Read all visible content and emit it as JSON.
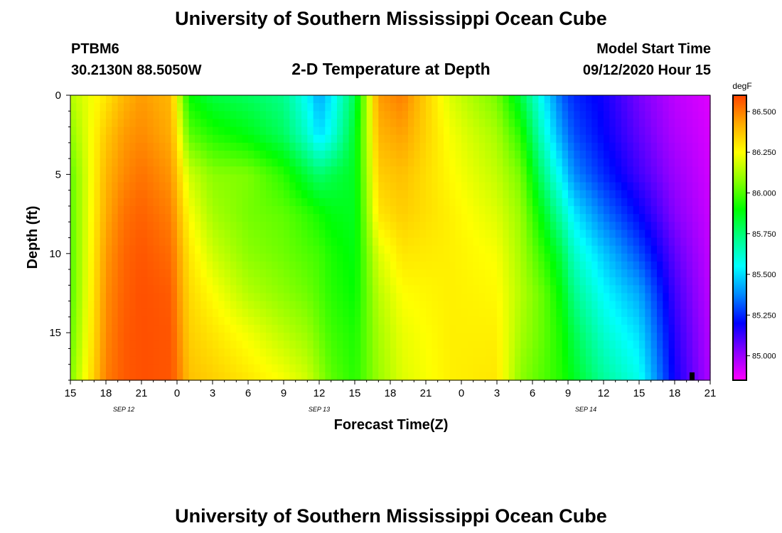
{
  "header": {
    "title": "University of Southern Mississippi Ocean Cube",
    "station_id": "PTBM6",
    "station_coords": "30.2130N 88.5050W",
    "subtitle": "2-D Temperature at Depth",
    "model_start_label": "Model Start Time",
    "model_start_value": "09/12/2020 Hour 15"
  },
  "footer": {
    "title": "University of Southern Mississippi Ocean Cube"
  },
  "chart_data": {
    "type": "heatmap",
    "title": "2-D Temperature at Depth",
    "xlabel": "Forecast Time(Z)",
    "ylabel": "Depth (ft)",
    "colorbar_unit": "degF",
    "colorbar_ticks": [
      "86.500",
      "86.250",
      "86.000",
      "85.750",
      "85.500",
      "85.250",
      "85.000"
    ],
    "colorbar_range": [
      84.85,
      86.6
    ],
    "colorbar_colors": [
      "#ff00ff",
      "#8a00ff",
      "#0000ff",
      "#0088ff",
      "#00ffff",
      "#00ff88",
      "#00ff00",
      "#88ff00",
      "#ffff00",
      "#ffaa00",
      "#ff4400"
    ],
    "x_tick_labels": [
      "15",
      "18",
      "21",
      "0",
      "3",
      "6",
      "9",
      "12",
      "15",
      "18",
      "21",
      "0",
      "3",
      "6",
      "9",
      "12",
      "15",
      "18",
      "21"
    ],
    "x_hours": [
      0,
      3,
      6,
      9,
      12,
      15,
      18,
      21,
      24,
      27,
      30,
      33,
      36,
      39,
      42,
      45,
      48,
      51,
      54
    ],
    "date_labels": [
      {
        "hour": 4.5,
        "text": "SEP 12"
      },
      {
        "hour": 21,
        "text": "SEP 13"
      },
      {
        "hour": 43.5,
        "text": "SEP 14"
      }
    ],
    "y_tick_labels": [
      "0",
      "5",
      "10",
      "15"
    ],
    "y_ticks": [
      0,
      5,
      10,
      15
    ],
    "xlim_hours": [
      0,
      54
    ],
    "ylim_ft": [
      0,
      18
    ],
    "x_hours_series": [
      0,
      3,
      4.5,
      6,
      8.5,
      9,
      10,
      12,
      15,
      18,
      20,
      21,
      22,
      24,
      26,
      28,
      32,
      36,
      38,
      40,
      41.5,
      42.5,
      45,
      48,
      51,
      54
    ],
    "depth_ft_series": [
      0,
      2.5,
      5,
      7.5,
      10,
      12.5,
      15,
      18
    ],
    "temperature_degF": [
      [
        86.14,
        86.08,
        86.02,
        86.01,
        86.0,
        86.0,
        86.02,
        86.06
      ],
      [
        86.3,
        86.36,
        86.4,
        86.42,
        86.45,
        86.47,
        86.48,
        86.5
      ],
      [
        86.4,
        86.45,
        86.48,
        86.52,
        86.54,
        86.55,
        86.56,
        86.56
      ],
      [
        86.45,
        86.48,
        86.52,
        86.55,
        86.57,
        86.58,
        86.58,
        86.58
      ],
      [
        86.4,
        86.42,
        86.46,
        86.5,
        86.53,
        86.56,
        86.57,
        86.57
      ],
      [
        86.22,
        86.3,
        86.37,
        86.42,
        86.46,
        86.48,
        86.5,
        86.52
      ],
      [
        85.9,
        86.02,
        86.18,
        86.25,
        86.3,
        86.33,
        86.35,
        86.38
      ],
      [
        85.82,
        85.94,
        86.08,
        86.12,
        86.18,
        86.25,
        86.3,
        86.35
      ],
      [
        85.78,
        85.88,
        86.06,
        86.05,
        86.08,
        86.14,
        86.23,
        86.3
      ],
      [
        85.72,
        85.78,
        85.95,
        86.02,
        86.04,
        86.08,
        86.15,
        86.24
      ],
      [
        85.55,
        85.62,
        85.82,
        85.96,
        86.0,
        86.04,
        86.1,
        86.18
      ],
      [
        85.42,
        85.5,
        85.76,
        85.92,
        85.98,
        86.0,
        86.04,
        86.1
      ],
      [
        85.52,
        85.58,
        85.8,
        85.88,
        85.93,
        85.95,
        85.98,
        86.02
      ],
      [
        85.8,
        85.85,
        85.86,
        85.86,
        85.88,
        85.9,
        85.93,
        85.95
      ],
      [
        86.45,
        86.4,
        86.35,
        86.3,
        86.2,
        86.15,
        86.12,
        86.1
      ],
      [
        86.5,
        86.44,
        86.38,
        86.35,
        86.3,
        86.25,
        86.22,
        86.2
      ],
      [
        86.2,
        86.24,
        86.26,
        86.28,
        86.28,
        86.28,
        86.28,
        86.28
      ],
      [
        86.05,
        86.12,
        86.16,
        86.2,
        86.24,
        86.26,
        86.28,
        86.3
      ],
      [
        85.82,
        85.95,
        86.05,
        86.1,
        86.12,
        86.14,
        86.12,
        86.08
      ],
      [
        85.52,
        85.6,
        85.72,
        85.85,
        85.95,
        86.02,
        86.02,
        86.0
      ],
      [
        85.32,
        85.4,
        85.52,
        85.66,
        85.8,
        85.88,
        85.92,
        85.94
      ],
      [
        85.25,
        85.3,
        85.38,
        85.52,
        85.63,
        85.72,
        85.8,
        85.86
      ],
      [
        85.18,
        85.2,
        85.25,
        85.35,
        85.47,
        85.55,
        85.62,
        85.7
      ],
      [
        85.05,
        85.08,
        85.12,
        85.2,
        85.3,
        85.42,
        85.5,
        85.58
      ],
      [
        84.95,
        84.97,
        85.0,
        85.03,
        85.08,
        85.12,
        85.15,
        85.18
      ],
      [
        84.9,
        84.91,
        84.92,
        84.93,
        84.94,
        84.95,
        84.96,
        84.97
      ]
    ]
  }
}
